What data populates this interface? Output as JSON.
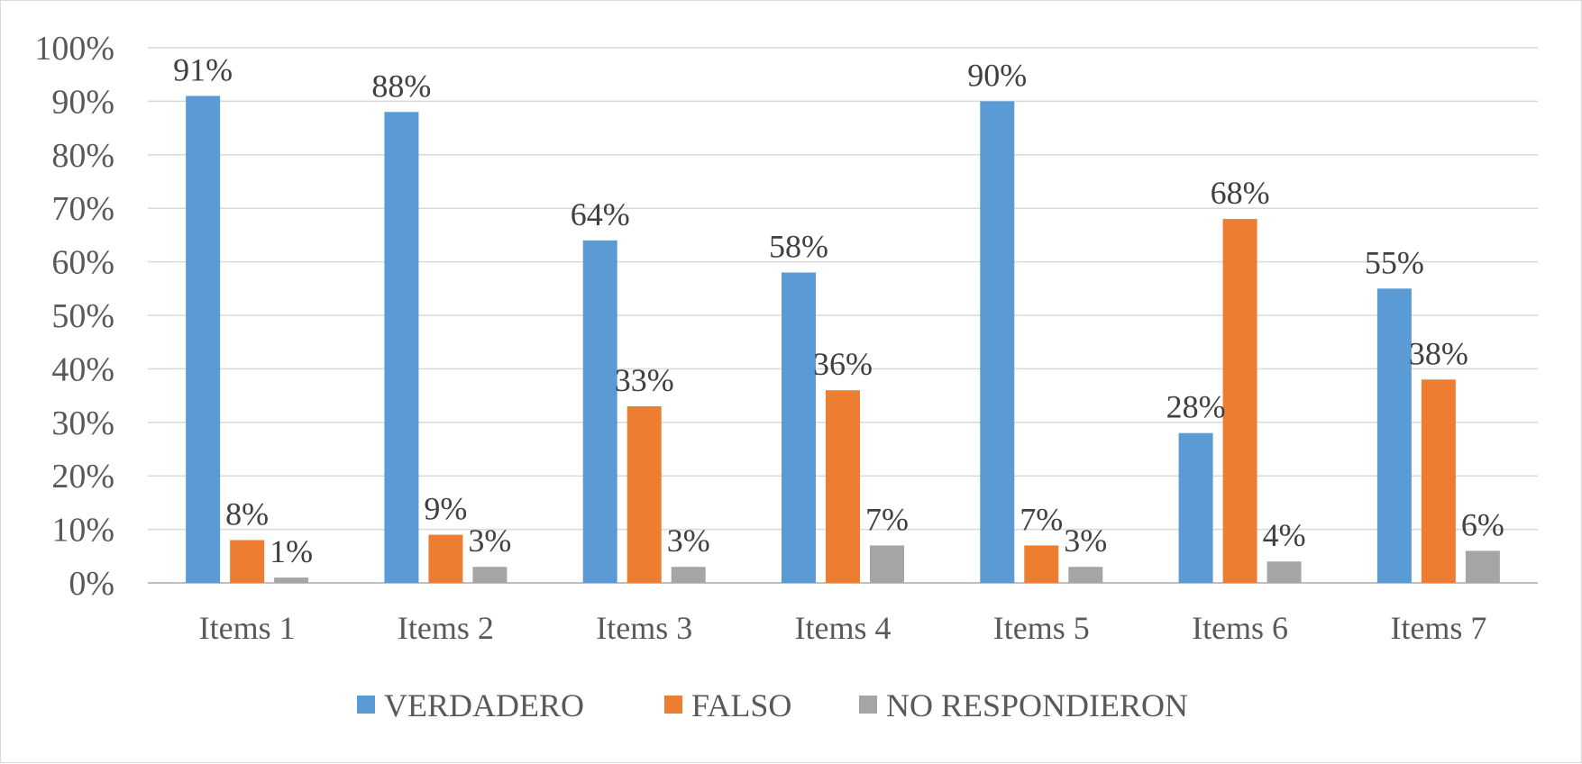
{
  "chart_data": {
    "type": "bar",
    "categories": [
      "Items 1",
      "Items 2",
      "Items 3",
      "Items 4",
      "Items 5",
      "Items 6",
      "Items 7"
    ],
    "series": [
      {
        "name": "VERDADERO",
        "color": "#5B9BD5",
        "values": [
          0.91,
          0.88,
          0.64,
          0.58,
          0.9,
          0.28,
          0.55
        ],
        "labels": [
          "91%",
          "88%",
          "64%",
          "58%",
          "90%",
          "28%",
          "55%"
        ]
      },
      {
        "name": "FALSO",
        "color": "#ED7D31",
        "values": [
          0.08,
          0.09,
          0.33,
          0.36,
          0.07,
          0.68,
          0.38
        ],
        "labels": [
          "8%",
          "9%",
          "33%",
          "36%",
          "7%",
          "68%",
          "38%"
        ]
      },
      {
        "name": "NO RESPONDIERON",
        "color": "#A5A5A5",
        "values": [
          0.01,
          0.03,
          0.03,
          0.07,
          0.03,
          0.04,
          0.06
        ],
        "labels": [
          "1%",
          "3%",
          "3%",
          "7%",
          "3%",
          "4%",
          "6%"
        ]
      }
    ],
    "ylim": [
      0,
      1
    ],
    "yticks": [
      "0%",
      "10%",
      "20%",
      "30%",
      "40%",
      "50%",
      "60%",
      "70%",
      "80%",
      "90%",
      "100%"
    ],
    "grid": true,
    "legend_position": "bottom"
  }
}
